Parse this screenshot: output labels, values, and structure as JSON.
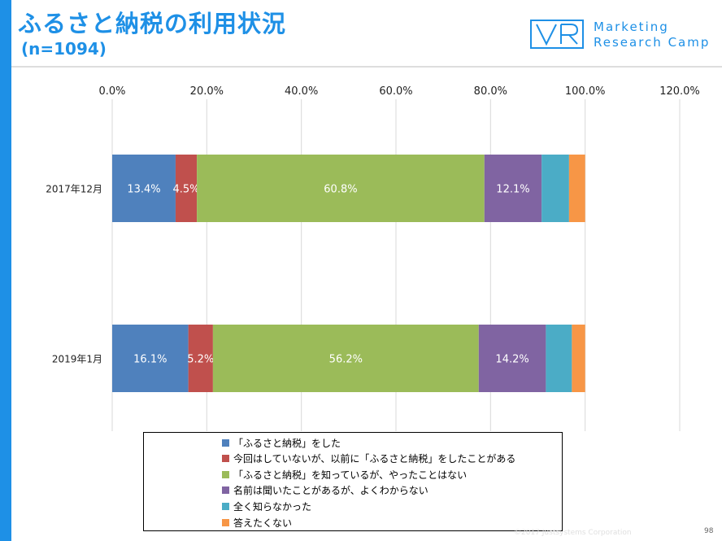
{
  "header": {
    "title": "ふるさと納税の利用状況",
    "subtitle": "(n=1094)",
    "logo_line1": "Marketing",
    "logo_line2": "Research Camp"
  },
  "colors": {
    "accent": "#1e90e6",
    "series": [
      "#4f81bd",
      "#c0504d",
      "#9bbb59",
      "#8064a2",
      "#4bacc6",
      "#f79646"
    ]
  },
  "chart_data": {
    "type": "bar",
    "orientation": "horizontal",
    "stacked": true,
    "categories": [
      "2017年12月",
      "2019年1月"
    ],
    "xlim": [
      0,
      120
    ],
    "x_ticks": [
      "0.0%",
      "20.0%",
      "40.0%",
      "60.0%",
      "80.0%",
      "100.0%",
      "120.0%"
    ],
    "grid": true,
    "legend_position": "bottom",
    "series": [
      {
        "name": "「ふるさと納税」をした",
        "values": [
          13.4,
          16.1
        ],
        "labels": [
          "13.4%",
          "16.1%"
        ]
      },
      {
        "name": "今回はしていないが、以前に「ふるさと納税」をしたことがある",
        "values": [
          4.5,
          5.2
        ],
        "labels": [
          "4.5%",
          "5.2%"
        ]
      },
      {
        "name": "「ふるさと納税」を知っているが、やったことはない",
        "values": [
          60.8,
          56.2
        ],
        "labels": [
          "60.8%",
          "56.2%"
        ]
      },
      {
        "name": "名前は聞いたことがあるが、よくわからない",
        "values": [
          12.1,
          14.2
        ],
        "labels": [
          "12.1%",
          "14.2%"
        ]
      },
      {
        "name": "全く知らなかった",
        "values": [
          5.8,
          5.5
        ],
        "labels": [
          "",
          ""
        ]
      },
      {
        "name": "答えたくない",
        "values": [
          3.4,
          2.8
        ],
        "labels": [
          "",
          ""
        ]
      }
    ]
  },
  "footer": {
    "copyright": "©2017 Justsystems Corporation",
    "page_number": "98"
  }
}
